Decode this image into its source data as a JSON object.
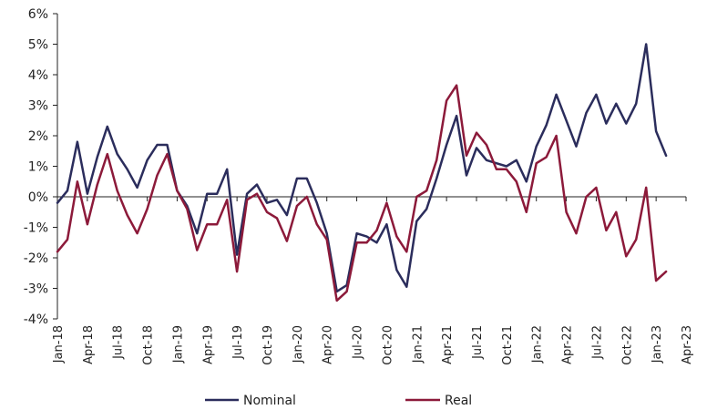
{
  "chart_data": {
    "type": "line",
    "title": "",
    "xlabel": "",
    "ylabel": "",
    "ylim": [
      -4,
      6
    ],
    "yticks": [
      -4,
      -3,
      -2,
      -1,
      0,
      1,
      2,
      3,
      4,
      5,
      6
    ],
    "ytick_labels": [
      "-4%",
      "-3%",
      "-2%",
      "-1%",
      "0%",
      "1%",
      "2%",
      "3%",
      "4%",
      "5%",
      "6%"
    ],
    "xtick_labels": [
      "Jan-18",
      "Apr-18",
      "Jul-18",
      "Oct-18",
      "Jan-19",
      "Apr-19",
      "Jul-19",
      "Oct-19",
      "Jan-20",
      "Apr-20",
      "Jul-20",
      "Oct-20",
      "Jan-21",
      "Apr-21",
      "Jul-21",
      "Oct-21",
      "Jan-22",
      "Apr-22",
      "Jul-22",
      "Oct-22",
      "Jan-23",
      "Apr-23"
    ],
    "x_start": "Jan-18",
    "series": [
      {
        "name": "Nominal",
        "color": "#2b2d5c",
        "values": [
          -0.2,
          0.2,
          1.8,
          0.1,
          1.3,
          2.3,
          1.4,
          0.9,
          0.3,
          1.2,
          1.7,
          1.7,
          0.2,
          -0.3,
          -1.2,
          0.1,
          0.1,
          0.9,
          -1.9,
          0.1,
          0.4,
          -0.2,
          -0.1,
          -0.6,
          0.6,
          0.6,
          -0.2,
          -1.2,
          -3.1,
          -2.9,
          -1.2,
          -1.3,
          -1.5,
          -0.9,
          -2.4,
          -2.95,
          -0.8,
          -0.4,
          0.6,
          1.7,
          2.65,
          0.7,
          1.6,
          1.2,
          1.1,
          1.0,
          1.2,
          0.5,
          1.65,
          2.35,
          3.35,
          2.5,
          1.65,
          2.75,
          3.35,
          2.4,
          3.05,
          2.4,
          3.05,
          5.0,
          2.15,
          1.35
        ]
      },
      {
        "name": "Real",
        "color": "#8c1a3a",
        "values": [
          -1.8,
          -1.4,
          0.5,
          -0.9,
          0.4,
          1.4,
          0.2,
          -0.6,
          -1.2,
          -0.4,
          0.7,
          1.4,
          0.2,
          -0.4,
          -1.75,
          -0.9,
          -0.9,
          -0.1,
          -2.45,
          -0.1,
          0.1,
          -0.5,
          -0.7,
          -1.45,
          -0.3,
          0.0,
          -0.9,
          -1.4,
          -3.4,
          -3.1,
          -1.5,
          -1.5,
          -1.1,
          -0.2,
          -1.3,
          -1.8,
          0.0,
          0.2,
          1.2,
          3.15,
          3.65,
          1.35,
          2.1,
          1.7,
          0.9,
          0.9,
          0.5,
          -0.5,
          1.1,
          1.3,
          2.0,
          -0.5,
          -1.2,
          0.0,
          0.3,
          -1.1,
          -0.5,
          -1.95,
          -1.4,
          0.3,
          -2.75,
          -2.45
        ]
      }
    ]
  }
}
